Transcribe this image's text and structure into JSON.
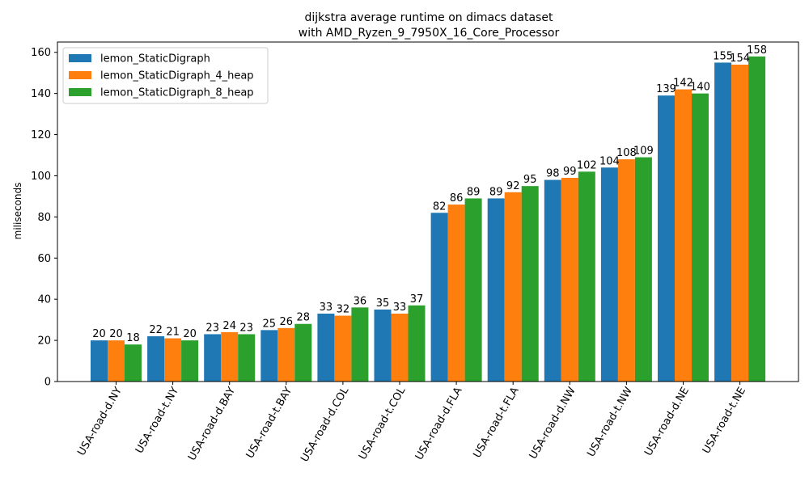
{
  "chart_data": {
    "type": "bar",
    "title": "dijkstra average runtime on dimacs dataset",
    "subtitle": "with AMD_Ryzen_9_7950X_16_Core_Processor",
    "xlabel": "",
    "ylabel": "miliseconds",
    "ylim": [
      0,
      165
    ],
    "yticks": [
      0,
      20,
      40,
      60,
      80,
      100,
      120,
      140,
      160
    ],
    "legend_position": "top-left",
    "grid": false,
    "categories": [
      "USA-road-d.NY",
      "USA-road-t.NY",
      "USA-road-d.BAY",
      "USA-road-t.BAY",
      "USA-road-d.COL",
      "USA-road-t.COL",
      "USA-road-d.FLA",
      "USA-road-t.FLA",
      "USA-road-d.NW",
      "USA-road-t.NW",
      "USA-road-d.NE",
      "USA-road-t.NE"
    ],
    "series": [
      {
        "name": "lemon_StaticDigraph",
        "color": "#1f77b4",
        "values": [
          20,
          22,
          23,
          25,
          33,
          35,
          82,
          89,
          98,
          104,
          139,
          155
        ]
      },
      {
        "name": "lemon_StaticDigraph_4_heap",
        "color": "#ff7f0e",
        "values": [
          20,
          21,
          24,
          26,
          32,
          33,
          86,
          92,
          99,
          108,
          142,
          154
        ]
      },
      {
        "name": "lemon_StaticDigraph_8_heap",
        "color": "#2ca02c",
        "values": [
          18,
          20,
          23,
          28,
          36,
          37,
          89,
          95,
          102,
          109,
          140,
          158
        ]
      }
    ]
  }
}
